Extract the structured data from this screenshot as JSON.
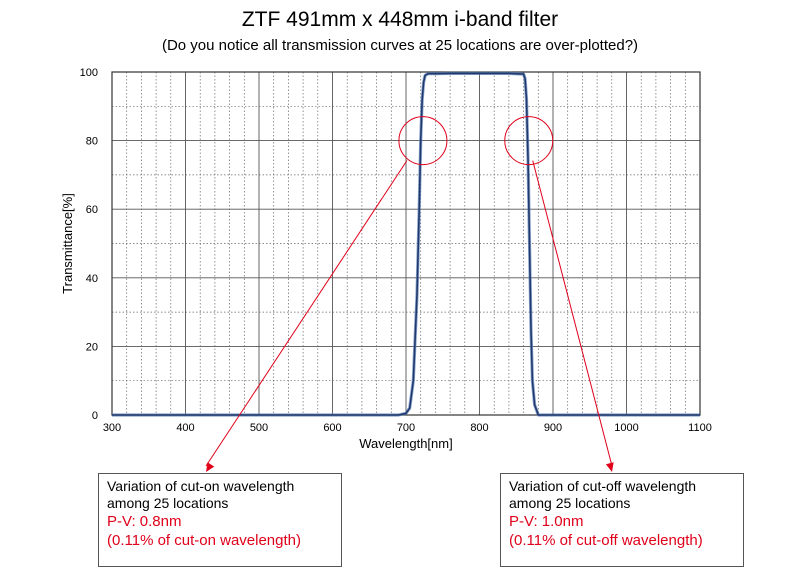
{
  "chart_data": {
    "type": "line",
    "title": "ZTF 491mm x 448mm i-band filter",
    "subtitle": "(Do you notice all transmission curves at 25 locations are over-plotted?)",
    "xlabel": "Wavelength[nm]",
    "ylabel": "Transmittance[%]",
    "xlim": [
      300,
      1100
    ],
    "ylim": [
      0,
      100
    ],
    "x_ticks": [
      300,
      400,
      500,
      600,
      700,
      800,
      900,
      1000,
      1100
    ],
    "y_ticks": [
      0,
      20,
      40,
      60,
      80,
      100
    ],
    "grid": true,
    "series": [
      {
        "x": [
          300,
          690,
          700,
          705,
          710,
          715,
          718,
          720,
          722,
          724,
          726,
          730,
          740,
          760,
          800,
          840,
          860,
          862,
          864,
          866,
          868,
          870,
          872,
          875,
          880,
          1100
        ],
        "y": [
          0,
          0,
          0.5,
          2,
          10,
          35,
          60,
          80,
          92,
          97,
          99,
          99.5,
          99.5,
          99.6,
          99.6,
          99.6,
          99.4,
          98,
          92,
          75,
          50,
          25,
          10,
          3,
          0,
          0
        ]
      }
    ],
    "colors": {
      "curve": "#1f3a6b",
      "annotation": "#e0001a"
    }
  },
  "annotations": {
    "cut_on": {
      "line1": "Variation of cut-on wavelength",
      "line2": "among 25 locations",
      "pv": "P-V: 0.8nm",
      "pct": "(0.11% of cut-on wavelength)",
      "circle_center": [
        723,
        80
      ],
      "arrow_target": "box-left"
    },
    "cut_off": {
      "line1": "Variation of cut-off wavelength",
      "line2": "among 25 locations",
      "pv": "P-V: 1.0nm",
      "pct": "(0.11% of cut-off wavelength)",
      "circle_center": [
        867,
        80
      ],
      "arrow_target": "box-right"
    }
  }
}
